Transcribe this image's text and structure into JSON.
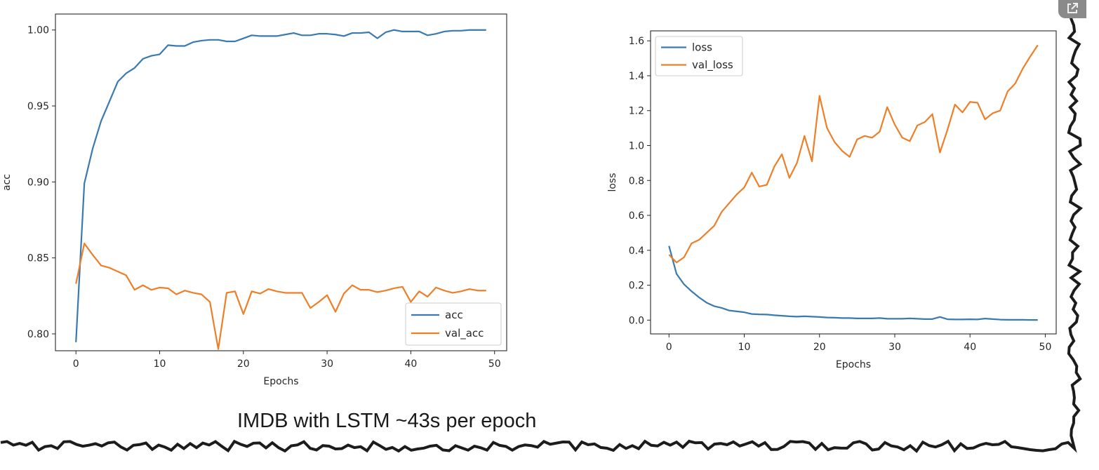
{
  "caption": "IMDB with LSTM ~43s per epoch",
  "icons": {
    "corner": "external-link-icon"
  },
  "colors": {
    "series1": "#3a7ab0",
    "series2": "#ee7f28",
    "frame": "#262626",
    "torn_edge": "#1c1c1c"
  },
  "chart_data": [
    {
      "type": "line",
      "xlabel": "Epochs",
      "ylabel": "acc",
      "xlim": [
        -2.45,
        51.45
      ],
      "ylim": [
        0.7889,
        1.0105
      ],
      "xticks": [
        0,
        10,
        20,
        30,
        40,
        50
      ],
      "yticks": [
        0.8,
        0.85,
        0.9,
        0.95,
        1.0
      ],
      "ytick_labels": [
        "0.80",
        "0.85",
        "0.90",
        "0.95",
        "1.00"
      ],
      "grid": false,
      "legend_position": "lower-right",
      "series": [
        {
          "name": "acc",
          "color": "#3a7ab0",
          "x": [
            0,
            1,
            2,
            3,
            4,
            5,
            6,
            7,
            8,
            9,
            10,
            11,
            12,
            13,
            14,
            15,
            16,
            17,
            18,
            19,
            20,
            21,
            22,
            23,
            24,
            25,
            26,
            27,
            28,
            29,
            30,
            31,
            32,
            33,
            34,
            35,
            36,
            37,
            38,
            39,
            40,
            41,
            42,
            43,
            44,
            45,
            46,
            47,
            48,
            49
          ],
          "values": [
            0.7945,
            0.899,
            0.922,
            0.94,
            0.953,
            0.966,
            0.9715,
            0.975,
            0.981,
            0.983,
            0.984,
            0.99,
            0.9895,
            0.9895,
            0.992,
            0.993,
            0.9935,
            0.9935,
            0.9925,
            0.9925,
            0.9945,
            0.9965,
            0.996,
            0.996,
            0.996,
            0.997,
            0.998,
            0.9965,
            0.9965,
            0.9975,
            0.9975,
            0.997,
            0.996,
            0.998,
            0.998,
            0.9985,
            0.9945,
            0.9985,
            1.0,
            0.999,
            0.999,
            0.999,
            0.9965,
            0.9975,
            0.999,
            0.9995,
            0.9995,
            1.0,
            1.0,
            1.0
          ]
        },
        {
          "name": "val_acc",
          "color": "#ee7f28",
          "x": [
            0,
            1,
            2,
            3,
            4,
            5,
            6,
            7,
            8,
            9,
            10,
            11,
            12,
            13,
            14,
            15,
            16,
            17,
            18,
            19,
            20,
            21,
            22,
            23,
            24,
            25,
            26,
            27,
            28,
            29,
            30,
            31,
            32,
            33,
            34,
            35,
            36,
            37,
            38,
            39,
            40,
            41,
            42,
            43,
            44,
            45,
            46,
            47,
            48,
            49
          ],
          "values": [
            0.833,
            0.8595,
            0.852,
            0.845,
            0.8435,
            0.841,
            0.8385,
            0.829,
            0.832,
            0.829,
            0.8305,
            0.83,
            0.826,
            0.8285,
            0.827,
            0.826,
            0.821,
            0.79,
            0.827,
            0.828,
            0.813,
            0.828,
            0.8265,
            0.8295,
            0.828,
            0.827,
            0.827,
            0.827,
            0.817,
            0.821,
            0.8255,
            0.8145,
            0.8265,
            0.832,
            0.829,
            0.829,
            0.8275,
            0.8285,
            0.83,
            0.831,
            0.821,
            0.828,
            0.8245,
            0.8305,
            0.8285,
            0.827,
            0.828,
            0.8295,
            0.8285,
            0.8285
          ]
        }
      ]
    },
    {
      "type": "line",
      "xlabel": "Epochs",
      "ylabel": "loss",
      "xlim": [
        -2.45,
        51.45
      ],
      "ylim": [
        -0.079,
        1.657
      ],
      "xticks": [
        0,
        10,
        20,
        30,
        40,
        50
      ],
      "yticks": [
        0.0,
        0.2,
        0.4,
        0.6,
        0.8,
        1.0,
        1.2,
        1.4,
        1.6
      ],
      "ytick_labels": [
        "0.0",
        "0.2",
        "0.4",
        "0.6",
        "0.8",
        "1.0",
        "1.2",
        "1.4",
        "1.6"
      ],
      "grid": false,
      "legend_position": "upper-left",
      "series": [
        {
          "name": "loss",
          "color": "#3a7ab0",
          "x": [
            0,
            1,
            2,
            3,
            4,
            5,
            6,
            7,
            8,
            9,
            10,
            11,
            12,
            13,
            14,
            15,
            16,
            17,
            18,
            19,
            20,
            21,
            22,
            23,
            24,
            25,
            26,
            27,
            28,
            29,
            30,
            31,
            32,
            33,
            34,
            35,
            36,
            37,
            38,
            39,
            40,
            41,
            42,
            43,
            44,
            45,
            46,
            47,
            48,
            49
          ],
          "values": [
            0.425,
            0.265,
            0.205,
            0.165,
            0.13,
            0.1,
            0.08,
            0.07,
            0.055,
            0.05,
            0.045,
            0.035,
            0.033,
            0.032,
            0.028,
            0.025,
            0.022,
            0.02,
            0.022,
            0.02,
            0.018,
            0.015,
            0.014,
            0.012,
            0.012,
            0.01,
            0.01,
            0.01,
            0.012,
            0.008,
            0.008,
            0.008,
            0.01,
            0.008,
            0.006,
            0.006,
            0.018,
            0.005,
            0.004,
            0.004,
            0.005,
            0.004,
            0.009,
            0.006,
            0.003,
            0.002,
            0.002,
            0.002,
            0.001,
            0.001
          ]
        },
        {
          "name": "val_loss",
          "color": "#ee7f28",
          "x": [
            0,
            1,
            2,
            3,
            4,
            5,
            6,
            7,
            8,
            9,
            10,
            11,
            12,
            13,
            14,
            15,
            16,
            17,
            18,
            19,
            20,
            21,
            22,
            23,
            24,
            25,
            26,
            27,
            28,
            29,
            30,
            31,
            32,
            33,
            34,
            35,
            36,
            37,
            38,
            39,
            40,
            41,
            42,
            43,
            44,
            45,
            46,
            47,
            48,
            49
          ],
          "values": [
            0.375,
            0.33,
            0.36,
            0.44,
            0.46,
            0.5,
            0.54,
            0.62,
            0.67,
            0.72,
            0.76,
            0.845,
            0.765,
            0.775,
            0.88,
            0.95,
            0.815,
            0.9,
            1.055,
            0.91,
            1.285,
            1.1,
            1.02,
            0.97,
            0.935,
            1.035,
            1.055,
            1.045,
            1.08,
            1.22,
            1.12,
            1.045,
            1.025,
            1.115,
            1.135,
            1.18,
            0.96,
            1.09,
            1.235,
            1.19,
            1.25,
            1.245,
            1.15,
            1.185,
            1.2,
            1.31,
            1.355,
            1.44,
            1.51,
            1.575
          ]
        }
      ]
    }
  ]
}
